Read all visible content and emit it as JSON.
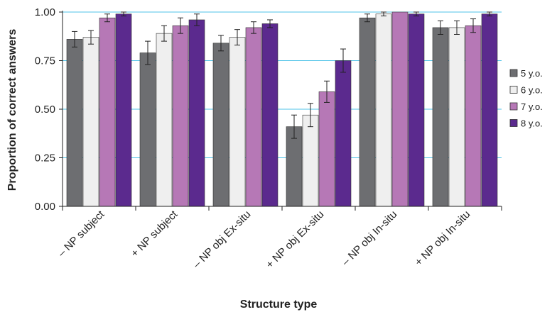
{
  "chart_data": {
    "type": "bar",
    "title": "",
    "xlabel": "Structure type",
    "ylabel": "Proportion of correct answers",
    "ylim": [
      0,
      1.0
    ],
    "yticks": [
      "0.00",
      "0.25",
      "0.50",
      "0.75",
      "1.00"
    ],
    "grid": "horizontal",
    "legend_position": "right",
    "categories": [
      "– NP subject",
      "+ NP subject",
      "– NP obj Ex-situ",
      "+ NP obj Ex-situ",
      "– NP obj In-situ",
      "+ NP obj In-situ"
    ],
    "series": [
      {
        "name": "5 y.o.",
        "color": "#6d6e71",
        "values": [
          0.86,
          0.79,
          0.84,
          0.41,
          0.97,
          0.92
        ],
        "errors": [
          0.04,
          0.06,
          0.04,
          0.06,
          0.02,
          0.035
        ]
      },
      {
        "name": "6 y.o.",
        "color": "#efefef",
        "values": [
          0.87,
          0.89,
          0.87,
          0.47,
          0.99,
          0.92
        ],
        "errors": [
          0.035,
          0.04,
          0.04,
          0.06,
          0.01,
          0.035
        ]
      },
      {
        "name": "7 y.o.",
        "color": "#b678b6",
        "values": [
          0.97,
          0.93,
          0.92,
          0.59,
          1.0,
          0.93
        ],
        "errors": [
          0.02,
          0.04,
          0.03,
          0.055,
          0.0,
          0.035
        ]
      },
      {
        "name": "8 y.o.",
        "color": "#5b2a8e",
        "values": [
          0.99,
          0.96,
          0.94,
          0.75,
          0.99,
          0.99
        ],
        "errors": [
          0.01,
          0.03,
          0.02,
          0.06,
          0.01,
          0.01
        ]
      }
    ]
  }
}
